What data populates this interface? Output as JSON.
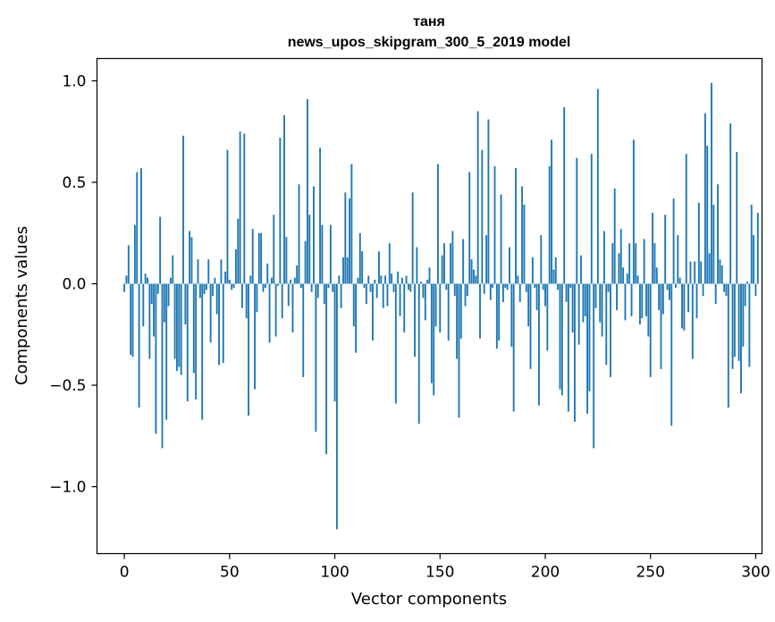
{
  "chart_data": {
    "type": "bar",
    "title": "таня",
    "subtitle": "news_upos_skipgram_300_5_2019 model",
    "xlabel": "Vector components",
    "ylabel": "Components values",
    "xlim": [
      -13,
      303
    ],
    "ylim": [
      -1.33,
      1.11
    ],
    "xticks": [
      0,
      50,
      100,
      150,
      200,
      250,
      300
    ],
    "xtick_labels": [
      "0",
      "50",
      "100",
      "150",
      "200",
      "250",
      "300"
    ],
    "yticks": [
      -1.0,
      -0.5,
      0.0,
      0.5,
      1.0
    ],
    "ytick_labels": [
      "−1.0",
      "−0.5",
      "0.0",
      "0.5",
      "1.0"
    ],
    "bar_color": "#1f77b4",
    "grid": false,
    "legend": "none",
    "values": [
      -0.04,
      0.04,
      0.19,
      -0.35,
      -0.36,
      0.29,
      0.55,
      -0.61,
      0.57,
      -0.21,
      0.05,
      0.03,
      -0.37,
      -0.1,
      -0.26,
      -0.74,
      -0.05,
      0.33,
      -0.81,
      -0.19,
      -0.67,
      -0.11,
      0.03,
      0.14,
      -0.37,
      -0.43,
      -0.41,
      -0.45,
      0.73,
      -0.2,
      -0.58,
      0.26,
      0.23,
      -0.44,
      -0.57,
      0.12,
      -0.07,
      -0.67,
      -0.05,
      -0.03,
      0.12,
      -0.29,
      -0.06,
      0.03,
      -0.15,
      -0.4,
      0.12,
      -0.39,
      0.06,
      0.66,
      0.02,
      -0.03,
      -0.02,
      0.17,
      0.32,
      0.75,
      -0.12,
      0.74,
      -0.17,
      -0.65,
      0.04,
      0.27,
      -0.52,
      -0.14,
      0.25,
      0.25,
      -0.04,
      -0.02,
      0.1,
      -0.29,
      0.03,
      0.34,
      -0.26,
      -0.01,
      0.72,
      -0.17,
      0.83,
      0.23,
      -0.11,
      0.02,
      -0.24,
      0.03,
      0.09,
      0.49,
      -0.02,
      -0.46,
      0.21,
      0.91,
      0.34,
      -0.04,
      0.48,
      -0.73,
      -0.07,
      0.67,
      0.29,
      -0.1,
      -0.84,
      -0.02,
      0.29,
      -0.04,
      -0.58,
      -1.21,
      0.04,
      -0.12,
      0.13,
      0.45,
      0.13,
      0.42,
      0.59,
      -0.21,
      -0.34,
      0.03,
      0.25,
      0.16,
      -0.02,
      -0.1,
      0.04,
      -0.04,
      -0.28,
      0.02,
      -0.07,
      0.16,
      0.04,
      -0.12,
      0.04,
      -0.11,
      0.2,
      0.05,
      -0.04,
      -0.59,
      0.06,
      -0.16,
      0.03,
      -0.24,
      0.04,
      -0.03,
      -0.04,
      0.45,
      -0.36,
      0.18,
      -0.69,
      0.01,
      -0.07,
      -0.18,
      0.02,
      0.08,
      -0.49,
      -0.55,
      -0.21,
      0.59,
      -0.24,
      0.14,
      0.2,
      -0.03,
      -0.28,
      0.2,
      0.26,
      -0.06,
      -0.37,
      -0.66,
      -0.27,
      0.22,
      -0.11,
      -0.06,
      0.55,
      0.12,
      0.07,
      0.04,
      0.85,
      -0.27,
      0.66,
      -0.05,
      0.24,
      0.81,
      -0.08,
      -0.02,
      0.58,
      -0.32,
      -0.28,
      0.44,
      -0.09,
      -0.02,
      -0.03,
      0.18,
      -0.31,
      -0.63,
      0.57,
      0.04,
      -0.09,
      0.48,
      0.39,
      -0.04,
      -0.21,
      -0.42,
      0.13,
      -0.02,
      -0.13,
      -0.6,
      0.24,
      -0.03,
      -0.11,
      -0.33,
      0.58,
      0.71,
      0.07,
      0.13,
      -0.03,
      -0.52,
      -0.55,
      0.87,
      -0.09,
      -0.63,
      -0.02,
      -0.24,
      -0.68,
      0.62,
      -0.3,
      0.14,
      -0.19,
      -0.16,
      -0.64,
      -0.53,
      0.64,
      -0.81,
      -0.12,
      0.96,
      -0.19,
      -0.26,
      0.26,
      -0.4,
      -0.04,
      -0.46,
      0.2,
      0.47,
      -0.13,
      0.15,
      0.27,
      0.08,
      -0.18,
      0.05,
      0.2,
      -0.16,
      0.71,
      0.2,
      0.04,
      -0.2,
      -0.17,
      0.22,
      -0.16,
      -0.26,
      -0.46,
      0.35,
      0.2,
      0.08,
      -0.13,
      -0.42,
      -0.15,
      0.34,
      -0.03,
      -0.08,
      -0.7,
      0.42,
      -0.02,
      0.24,
      0.03,
      -0.22,
      -0.23,
      0.64,
      -0.14,
      0.11,
      -0.37,
      0.11,
      -0.17,
      0.4,
      0.11,
      -0.06,
      0.84,
      0.68,
      0.15,
      0.99,
      0.39,
      -0.1,
      0.49,
      0.12,
      0.09,
      -0.04,
      -0.06,
      -0.61,
      0.79,
      -0.42,
      -0.36,
      0.65,
      -0.38,
      -0.54,
      -0.31,
      -0.11,
      0.01,
      -0.41,
      0.39,
      0.24,
      -0.06,
      0.35
    ]
  }
}
